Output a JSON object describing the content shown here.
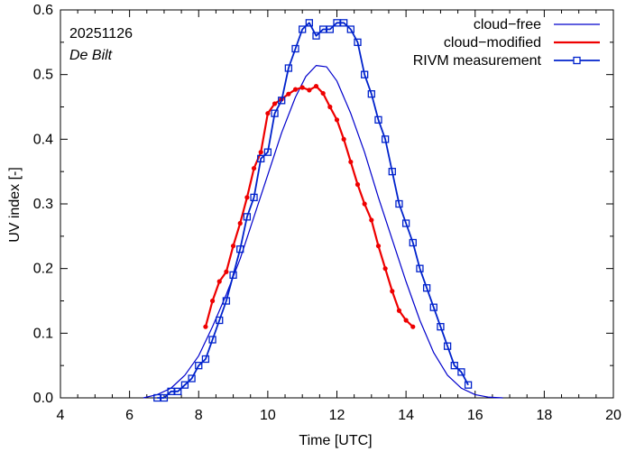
{
  "chart_data": {
    "type": "line",
    "title": "",
    "xlabel": "Time  [UTC]",
    "ylabel": "UV index  [-]",
    "xlim": [
      4,
      20
    ],
    "ylim": [
      0,
      0.6
    ],
    "xticks": [
      4,
      6,
      8,
      10,
      12,
      14,
      16,
      18,
      20
    ],
    "yticks": [
      0.0,
      0.1,
      0.2,
      0.3,
      0.4,
      0.5,
      0.6
    ],
    "xtick_labels": [
      "4",
      "6",
      "8",
      "10",
      "12",
      "14",
      "16",
      "18",
      "20"
    ],
    "ytick_labels": [
      "0.0",
      "0.1",
      "0.2",
      "0.3",
      "0.4",
      "0.5",
      "0.6"
    ],
    "grid": false,
    "legend_position": "top-right",
    "annotations": {
      "date": "20251126",
      "location": "De Bilt"
    },
    "series": [
      {
        "name": "cloud−free",
        "style": "thin-line",
        "color": "#0000cc",
        "x": [
          6.4,
          6.8,
          7.2,
          7.6,
          8.0,
          8.4,
          8.8,
          9.2,
          9.6,
          10.0,
          10.4,
          10.8,
          11.1,
          11.4,
          11.7,
          12.0,
          12.4,
          12.8,
          13.2,
          13.6,
          14.0,
          14.4,
          14.8,
          15.2,
          15.6,
          16.0,
          16.4,
          16.8
        ],
        "y": [
          0.0,
          0.005,
          0.015,
          0.035,
          0.065,
          0.11,
          0.16,
          0.215,
          0.28,
          0.345,
          0.41,
          0.465,
          0.497,
          0.514,
          0.512,
          0.49,
          0.44,
          0.38,
          0.31,
          0.245,
          0.18,
          0.12,
          0.07,
          0.035,
          0.015,
          0.005,
          0.001,
          0.0
        ]
      },
      {
        "name": "cloud−modified",
        "style": "thick-line-dots",
        "color": "#ee0000",
        "x": [
          8.2,
          8.4,
          8.6,
          8.8,
          9.0,
          9.2,
          9.4,
          9.6,
          9.8,
          10.0,
          10.2,
          10.4,
          10.6,
          10.8,
          11.0,
          11.2,
          11.4,
          11.6,
          11.8,
          12.0,
          12.2,
          12.4,
          12.6,
          12.8,
          13.0,
          13.2,
          13.4,
          13.6,
          13.8,
          14.0,
          14.2
        ],
        "y": [
          0.11,
          0.15,
          0.18,
          0.195,
          0.235,
          0.27,
          0.31,
          0.355,
          0.38,
          0.44,
          0.455,
          0.462,
          0.47,
          0.477,
          0.48,
          0.476,
          0.482,
          0.471,
          0.45,
          0.43,
          0.4,
          0.365,
          0.33,
          0.3,
          0.275,
          0.235,
          0.2,
          0.165,
          0.135,
          0.12,
          0.11
        ]
      },
      {
        "name": "RIVM measurement",
        "style": "line-squares",
        "color": "#0022cc",
        "x": [
          6.8,
          7.0,
          7.2,
          7.4,
          7.6,
          7.8,
          8.0,
          8.2,
          8.4,
          8.6,
          8.8,
          9.0,
          9.2,
          9.4,
          9.6,
          9.8,
          10.0,
          10.2,
          10.4,
          10.6,
          10.8,
          11.0,
          11.2,
          11.4,
          11.6,
          11.8,
          12.0,
          12.2,
          12.4,
          12.6,
          12.8,
          13.0,
          13.2,
          13.4,
          13.6,
          13.8,
          14.0,
          14.2,
          14.4,
          14.6,
          14.8,
          15.0,
          15.2,
          15.4,
          15.6,
          15.8
        ],
        "y": [
          0.0,
          0.0,
          0.01,
          0.01,
          0.02,
          0.03,
          0.05,
          0.06,
          0.09,
          0.12,
          0.15,
          0.19,
          0.23,
          0.28,
          0.31,
          0.37,
          0.38,
          0.44,
          0.46,
          0.51,
          0.54,
          0.57,
          0.58,
          0.56,
          0.57,
          0.57,
          0.58,
          0.58,
          0.57,
          0.55,
          0.5,
          0.47,
          0.43,
          0.4,
          0.35,
          0.3,
          0.27,
          0.24,
          0.2,
          0.17,
          0.14,
          0.11,
          0.08,
          0.05,
          0.04,
          0.02
        ]
      }
    ]
  }
}
